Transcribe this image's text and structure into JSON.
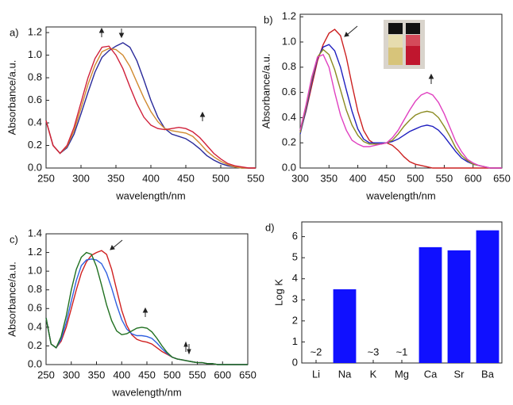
{
  "chart_data": [
    {
      "type": "line",
      "label": "a)",
      "xlabel": "wavelength/nm",
      "ylabel": "Absorbance/a.u.",
      "x": [
        250,
        260,
        270,
        280,
        290,
        300,
        310,
        320,
        330,
        340,
        350,
        360,
        370,
        380,
        390,
        400,
        410,
        420,
        430,
        440,
        450,
        460,
        470,
        480,
        490,
        500,
        510,
        520,
        530,
        540,
        550
      ],
      "series": [
        {
          "color": "#2a2a9a",
          "values": [
            0.42,
            0.2,
            0.13,
            0.18,
            0.3,
            0.48,
            0.67,
            0.85,
            0.98,
            1.04,
            1.08,
            1.11,
            1.07,
            0.95,
            0.78,
            0.6,
            0.45,
            0.35,
            0.3,
            0.28,
            0.26,
            0.22,
            0.17,
            0.11,
            0.07,
            0.04,
            0.02,
            0.01,
            0.0,
            0.0,
            0.0
          ]
        },
        {
          "color": "#d08a30",
          "values": [
            0.42,
            0.2,
            0.13,
            0.19,
            0.33,
            0.53,
            0.74,
            0.91,
            1.03,
            1.06,
            1.05,
            1.0,
            0.9,
            0.76,
            0.62,
            0.5,
            0.41,
            0.35,
            0.33,
            0.32,
            0.31,
            0.28,
            0.22,
            0.15,
            0.1,
            0.06,
            0.03,
            0.01,
            0.0,
            0.0,
            0.0
          ]
        },
        {
          "color": "#d0203a",
          "values": [
            0.42,
            0.2,
            0.13,
            0.2,
            0.36,
            0.58,
            0.8,
            0.97,
            1.07,
            1.08,
            1.0,
            0.88,
            0.72,
            0.57,
            0.45,
            0.38,
            0.35,
            0.34,
            0.35,
            0.36,
            0.35,
            0.32,
            0.27,
            0.2,
            0.13,
            0.08,
            0.04,
            0.02,
            0.01,
            0.0,
            0.0
          ]
        }
      ],
      "xlim": [
        250,
        550
      ],
      "xticks": [
        250,
        300,
        350,
        400,
        450,
        500,
        550
      ],
      "ylim": [
        0,
        1.25
      ],
      "yticks": [
        {
          "value": 0,
          "label": "0.0"
        },
        0.2,
        0.4,
        0.6,
        0.8,
        {
          "value": 1,
          "label": "1.0"
        },
        1.2
      ]
    },
    {
      "type": "line",
      "label": "b)",
      "xlabel": "wavelength/nm",
      "ylabel": "Absorbance/a.u.",
      "x": [
        300,
        310,
        320,
        330,
        340,
        350,
        360,
        370,
        380,
        390,
        400,
        410,
        420,
        430,
        440,
        450,
        460,
        470,
        480,
        490,
        500,
        510,
        520,
        530,
        540,
        550,
        560,
        570,
        580,
        590,
        600,
        610,
        620,
        630,
        640,
        650
      ],
      "series": [
        {
          "color": "#cc2020",
          "values": [
            0.28,
            0.45,
            0.65,
            0.85,
            0.98,
            1.07,
            1.1,
            1.05,
            0.88,
            0.66,
            0.45,
            0.3,
            0.22,
            0.19,
            0.19,
            0.2,
            0.18,
            0.14,
            0.09,
            0.05,
            0.03,
            0.02,
            0.01,
            0.0,
            0.0,
            0.0,
            0.0,
            0.0,
            0.0,
            0.0,
            0.0,
            0.0,
            0.0,
            0.0,
            0.0,
            0.0
          ]
        },
        {
          "color": "#2020c0",
          "values": [
            0.27,
            0.46,
            0.68,
            0.87,
            0.96,
            0.98,
            0.93,
            0.8,
            0.62,
            0.45,
            0.31,
            0.23,
            0.2,
            0.2,
            0.2,
            0.2,
            0.21,
            0.23,
            0.26,
            0.29,
            0.31,
            0.33,
            0.34,
            0.33,
            0.3,
            0.25,
            0.19,
            0.13,
            0.08,
            0.05,
            0.03,
            0.02,
            0.01,
            0.0,
            0.0,
            0.0
          ]
        },
        {
          "color": "#8a8a20",
          "values": [
            0.28,
            0.48,
            0.7,
            0.88,
            0.94,
            0.9,
            0.78,
            0.62,
            0.46,
            0.34,
            0.26,
            0.21,
            0.19,
            0.19,
            0.19,
            0.2,
            0.22,
            0.27,
            0.33,
            0.38,
            0.42,
            0.44,
            0.45,
            0.44,
            0.4,
            0.33,
            0.25,
            0.16,
            0.1,
            0.06,
            0.03,
            0.02,
            0.01,
            0.0,
            0.0,
            0.0
          ]
        },
        {
          "color": "#e040c0",
          "values": [
            0.3,
            0.5,
            0.72,
            0.88,
            0.9,
            0.8,
            0.6,
            0.42,
            0.3,
            0.22,
            0.19,
            0.17,
            0.17,
            0.18,
            0.19,
            0.2,
            0.24,
            0.3,
            0.38,
            0.46,
            0.53,
            0.58,
            0.6,
            0.58,
            0.52,
            0.43,
            0.32,
            0.21,
            0.13,
            0.07,
            0.04,
            0.02,
            0.01,
            0.0,
            0.0,
            0.0
          ]
        }
      ],
      "xlim": [
        300,
        650
      ],
      "xticks": [
        300,
        350,
        400,
        450,
        500,
        550,
        600,
        650
      ],
      "ylim": [
        0,
        1.22
      ],
      "yticks": [
        {
          "value": 0,
          "label": "0.0"
        },
        0.2,
        0.4,
        0.6,
        0.8,
        {
          "value": 1,
          "label": "1.0"
        },
        1.2
      ]
    },
    {
      "type": "line",
      "label": "c)",
      "xlabel": "wavelength/nm",
      "ylabel": "Absorbance/a.u.",
      "x": [
        250,
        260,
        270,
        280,
        290,
        300,
        310,
        320,
        330,
        340,
        350,
        360,
        370,
        380,
        390,
        400,
        410,
        420,
        430,
        440,
        450,
        460,
        470,
        480,
        490,
        500,
        510,
        520,
        530,
        540,
        550,
        560,
        570,
        580,
        590,
        600,
        610,
        620,
        630,
        640,
        650
      ],
      "series": [
        {
          "color": "#d02020",
          "values": [
            0.5,
            0.22,
            0.18,
            0.25,
            0.4,
            0.6,
            0.8,
            0.98,
            1.1,
            1.17,
            1.2,
            1.22,
            1.18,
            1.02,
            0.8,
            0.58,
            0.42,
            0.32,
            0.27,
            0.25,
            0.24,
            0.22,
            0.18,
            0.14,
            0.11,
            0.08,
            0.06,
            0.05,
            0.04,
            0.03,
            0.02,
            0.02,
            0.01,
            0.01,
            0.0,
            0.0,
            0.0,
            0.0,
            0.0,
            0.0,
            0.0
          ]
        },
        {
          "color": "#3060e0",
          "values": [
            0.5,
            0.22,
            0.18,
            0.27,
            0.45,
            0.68,
            0.9,
            1.06,
            1.12,
            1.13,
            1.12,
            1.08,
            0.98,
            0.82,
            0.64,
            0.48,
            0.38,
            0.33,
            0.31,
            0.31,
            0.3,
            0.28,
            0.23,
            0.17,
            0.12,
            0.08,
            0.06,
            0.05,
            0.04,
            0.03,
            0.02,
            0.02,
            0.01,
            0.01,
            0.0,
            0.0,
            0.0,
            0.0,
            0.0,
            0.0,
            0.0
          ]
        },
        {
          "color": "#207020",
          "values": [
            0.5,
            0.22,
            0.18,
            0.3,
            0.52,
            0.8,
            1.02,
            1.15,
            1.2,
            1.18,
            1.05,
            0.85,
            0.64,
            0.47,
            0.36,
            0.32,
            0.33,
            0.36,
            0.39,
            0.4,
            0.39,
            0.35,
            0.28,
            0.2,
            0.13,
            0.08,
            0.06,
            0.05,
            0.04,
            0.03,
            0.02,
            0.02,
            0.01,
            0.01,
            0.0,
            0.0,
            0.0,
            0.0,
            0.0,
            0.0,
            0.0
          ]
        }
      ],
      "xlim": [
        250,
        650
      ],
      "xticks": [
        250,
        300,
        350,
        400,
        450,
        500,
        550,
        600,
        650
      ],
      "ylim": [
        0,
        1.4
      ],
      "yticks": [
        {
          "value": 0,
          "label": "0.0"
        },
        0.2,
        0.4,
        0.6,
        0.8,
        {
          "value": 1,
          "label": "1.0"
        },
        1.2,
        1.4
      ]
    },
    {
      "type": "bar",
      "label": "d)",
      "ylabel": "Log K",
      "color": "#1010ff",
      "categories": [
        "Li",
        "Na",
        "K",
        "Mg",
        "Ca",
        "Sr",
        "Ba"
      ],
      "values": [
        null,
        3.5,
        null,
        null,
        5.5,
        5.35,
        6.3
      ],
      "notes": [
        "~2",
        null,
        "~3",
        "~1",
        null,
        null,
        null
      ],
      "ylim": [
        0,
        6.7
      ],
      "yticks": [
        0,
        1,
        2,
        3,
        4,
        5,
        6
      ]
    }
  ]
}
